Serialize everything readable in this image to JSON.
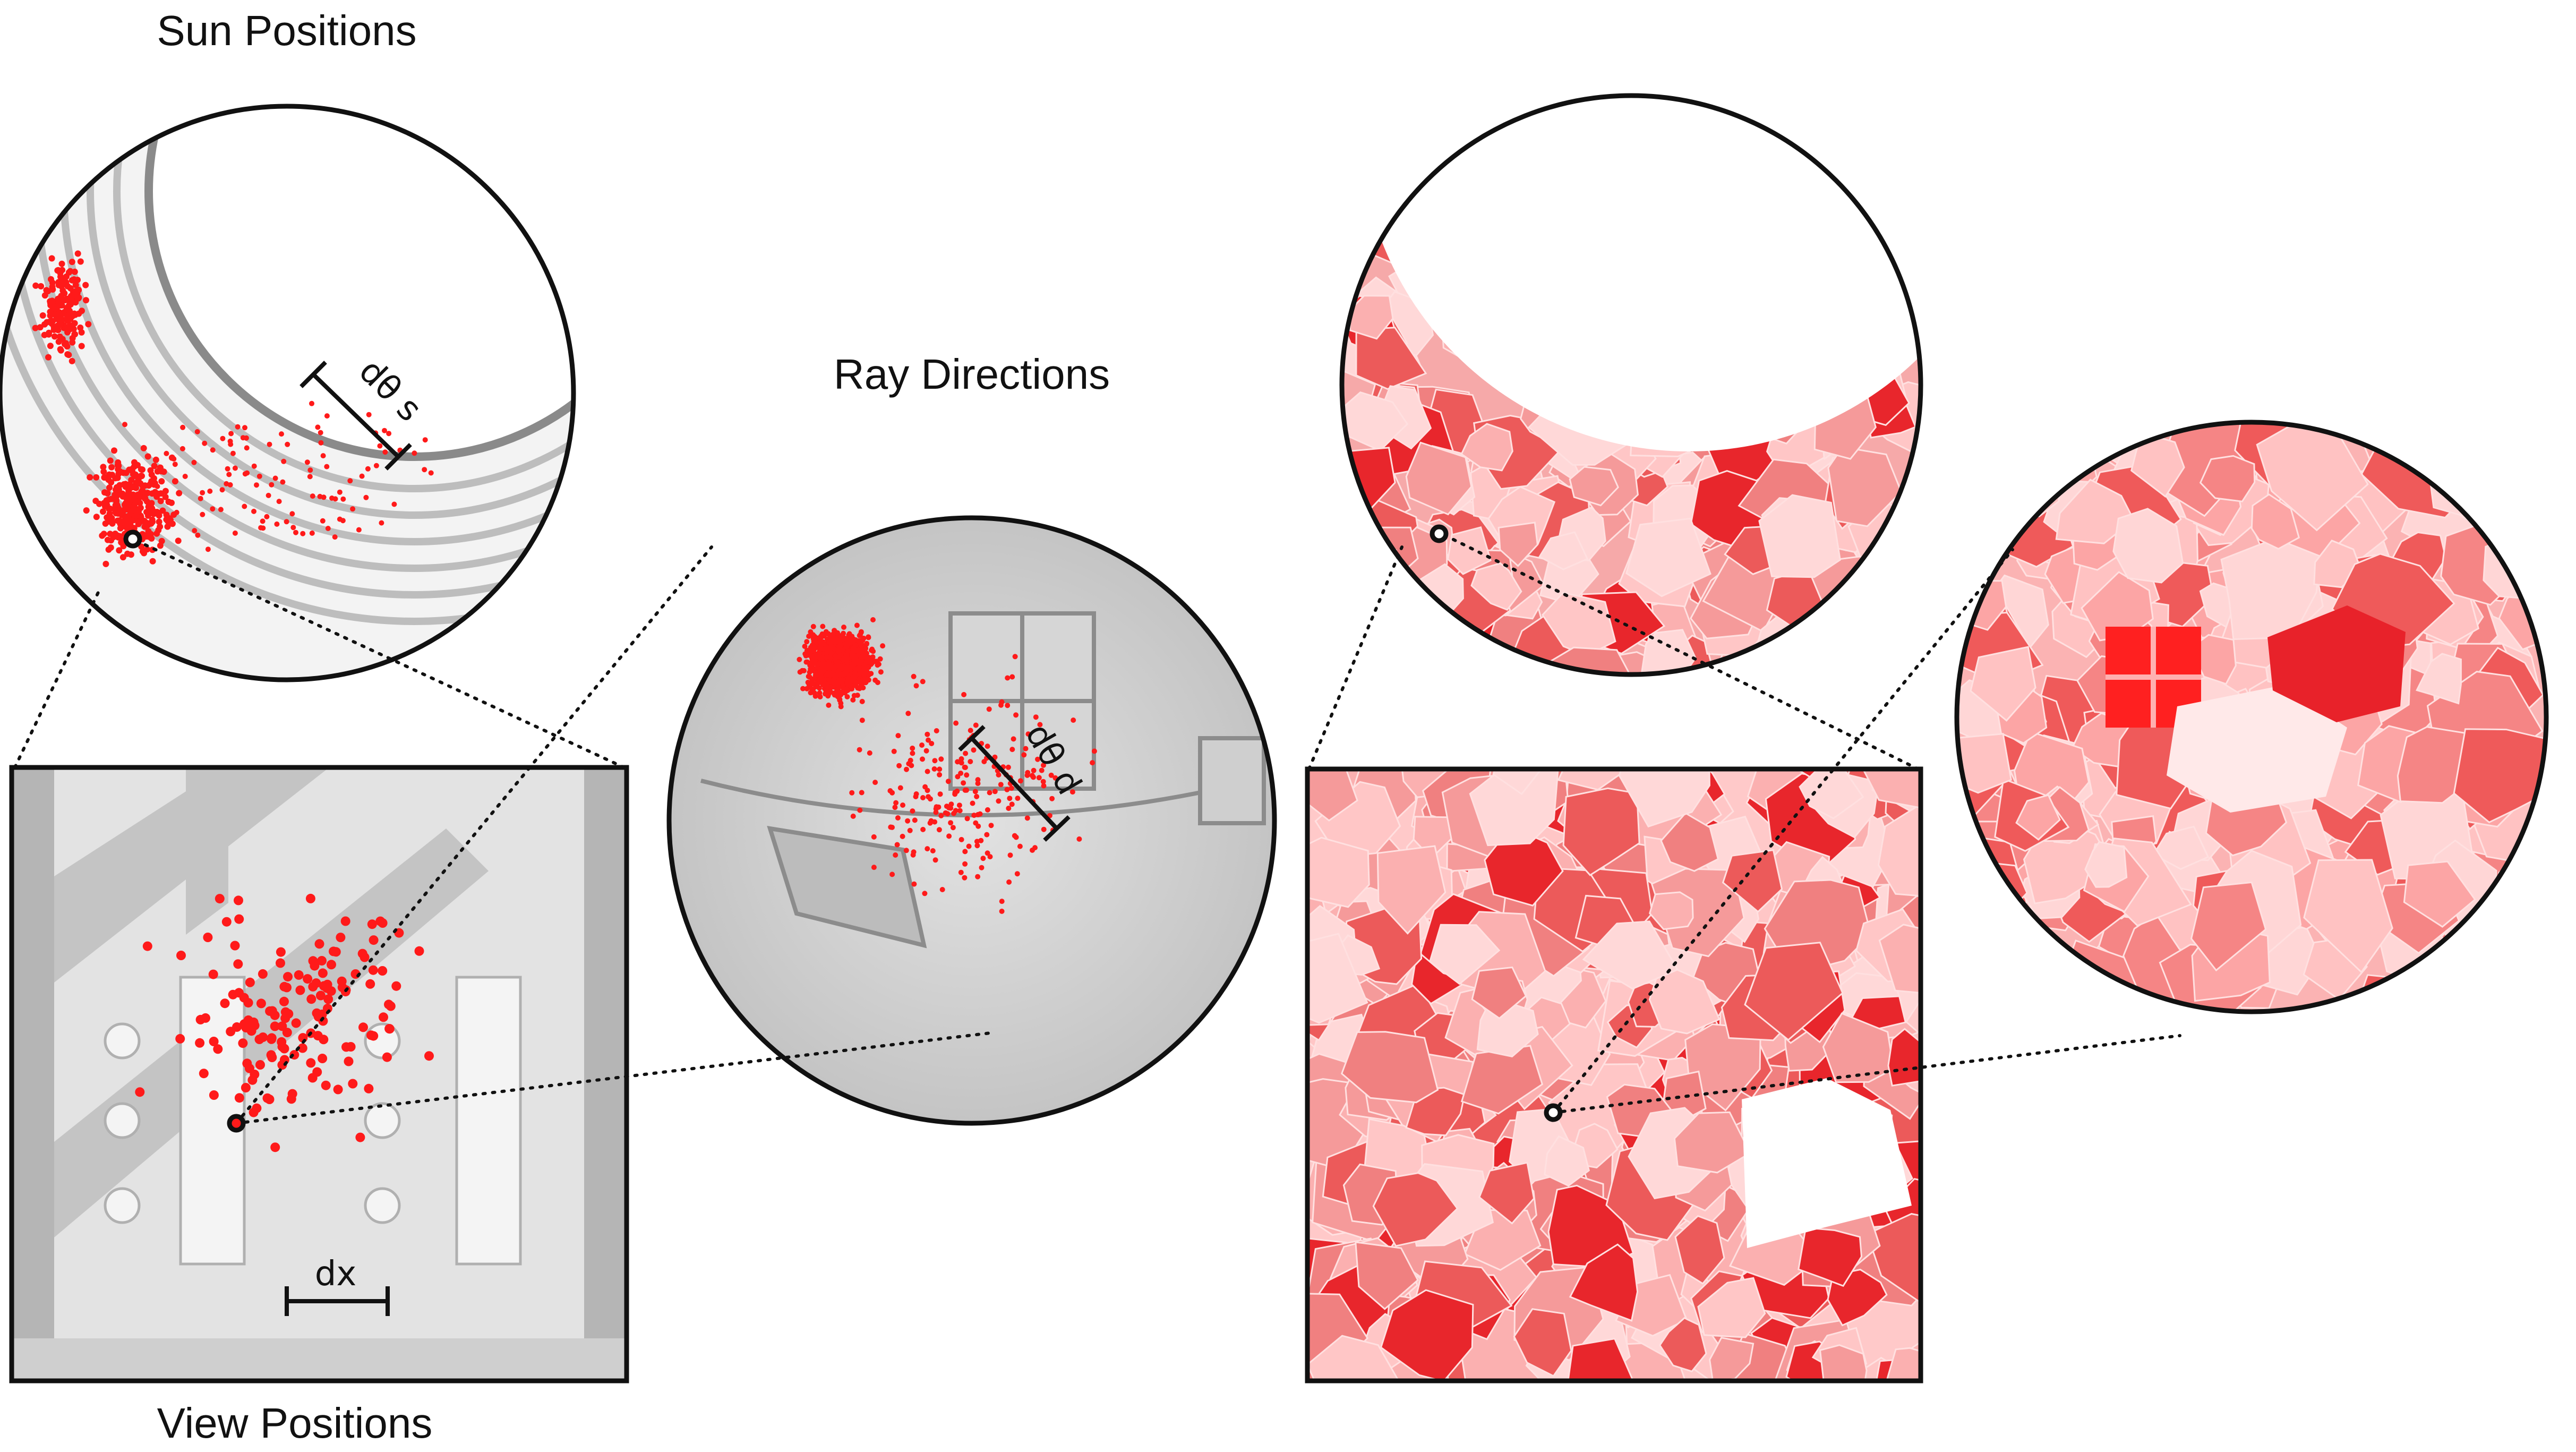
{
  "labels": {
    "sun_positions": "Sun Positions",
    "ray_directions": "Ray Directions",
    "view_positions": "View Positions",
    "d_theta_s": "dθ s",
    "d_theta_d": "dθ d",
    "dx": "dx"
  },
  "colors": {
    "sample_red": "#ff1a1a",
    "outline": "#111111",
    "grey_map": "#d4d4d4",
    "heat_light": "#ffc6c6",
    "heat_mid": "#f58a8a",
    "heat_dark": "#e8262c",
    "leader_line": "#111111"
  },
  "icons": [
    "selected-point-marker",
    "sample-dot",
    "scale-bar"
  ]
}
